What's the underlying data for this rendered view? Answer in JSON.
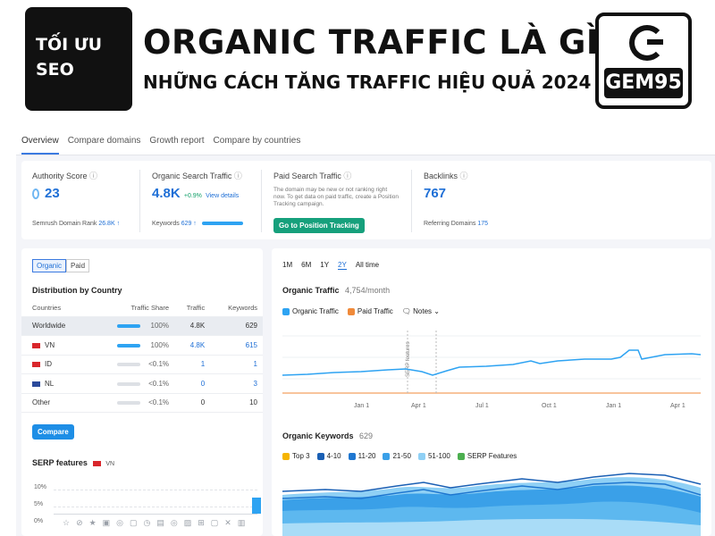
{
  "banner": {
    "left_badge": [
      "TỐI ƯU",
      "SEO"
    ],
    "title": "ORGANIC TRAFFIC LÀ GÌ",
    "subtitle": "NHỮNG CÁCH TĂNG TRAFFIC HIỆU QUẢ 2024",
    "logo_text": "GEM95"
  },
  "tabs": [
    "Overview",
    "Compare domains",
    "Growth report",
    "Compare by countries"
  ],
  "metrics": {
    "authority": {
      "label": "Authority Score",
      "value": "23",
      "foot_label": "Semrush Domain Rank",
      "foot_value": "26.8K ↑"
    },
    "organic": {
      "label": "Organic Search Traffic",
      "value": "4.8K",
      "delta": "+0.9%",
      "link": "View details",
      "foot_label": "Keywords",
      "foot_value": "629 ↑"
    },
    "paid": {
      "label": "Paid Search Traffic",
      "note": "The domain may be new or not ranking right now. To get data on paid traffic, create a Position Tracking campaign.",
      "button": "Go to Position Tracking"
    },
    "backlinks": {
      "label": "Backlinks",
      "value": "767",
      "foot_label": "Referring Domains",
      "foot_value": "175"
    }
  },
  "distribution": {
    "toggle": [
      "Organic",
      "Paid"
    ],
    "title": "Distribution by Country",
    "columns": [
      "Countries",
      "Traffic Share",
      "Traffic",
      "Keywords"
    ],
    "rows": [
      {
        "country": "Worldwide",
        "share": "100%",
        "traffic": "4.8K",
        "keywords": "629",
        "full": true,
        "flag": ""
      },
      {
        "country": "VN",
        "share": "100%",
        "traffic": "4.8K",
        "keywords": "615",
        "full": true,
        "flag": "#d9262b"
      },
      {
        "country": "ID",
        "share": "<0.1%",
        "traffic": "1",
        "keywords": "1",
        "full": false,
        "flag": "#d9262b"
      },
      {
        "country": "NL",
        "share": "<0.1%",
        "traffic": "0",
        "keywords": "3",
        "full": false,
        "flag": "#2b4a9b"
      },
      {
        "country": "Other",
        "share": "<0.1%",
        "traffic": "0",
        "keywords": "10",
        "full": false,
        "flag": ""
      }
    ],
    "compare_button": "Compare"
  },
  "serp": {
    "title": "SERP features",
    "country": "VN",
    "yticks": [
      "10%",
      "5%",
      "0%"
    ]
  },
  "periods": [
    "1M",
    "6M",
    "1Y",
    "2Y",
    "All time"
  ],
  "organic_traffic": {
    "title": "Organic Traffic",
    "value": "4,754/month",
    "legend": [
      "Organic Traffic",
      "Paid Traffic",
      "Notes"
    ],
    "xticks": [
      "Jan 1",
      "Apr 1",
      "Jul 1",
      "Oct 1",
      "Jan 1",
      "Apr 1"
    ],
    "annotation": "SERP features"
  },
  "organic_keywords": {
    "title": "Organic Keywords",
    "value": "629",
    "legend": [
      "Top 3",
      "4-10",
      "11-20",
      "21-50",
      "51-100",
      "SERP Features"
    ],
    "colors": {
      "top3": "#f5b400",
      "4-10": "#1a5fb4",
      "11-20": "#1f77d0",
      "21-50": "#3aa0e8",
      "51-100": "#8fd0f5",
      "serp": "#4caf50"
    }
  },
  "colors": {
    "accent": "#1e6fd6",
    "green_button": "#16a07c",
    "paid": "#f08a3a"
  }
}
